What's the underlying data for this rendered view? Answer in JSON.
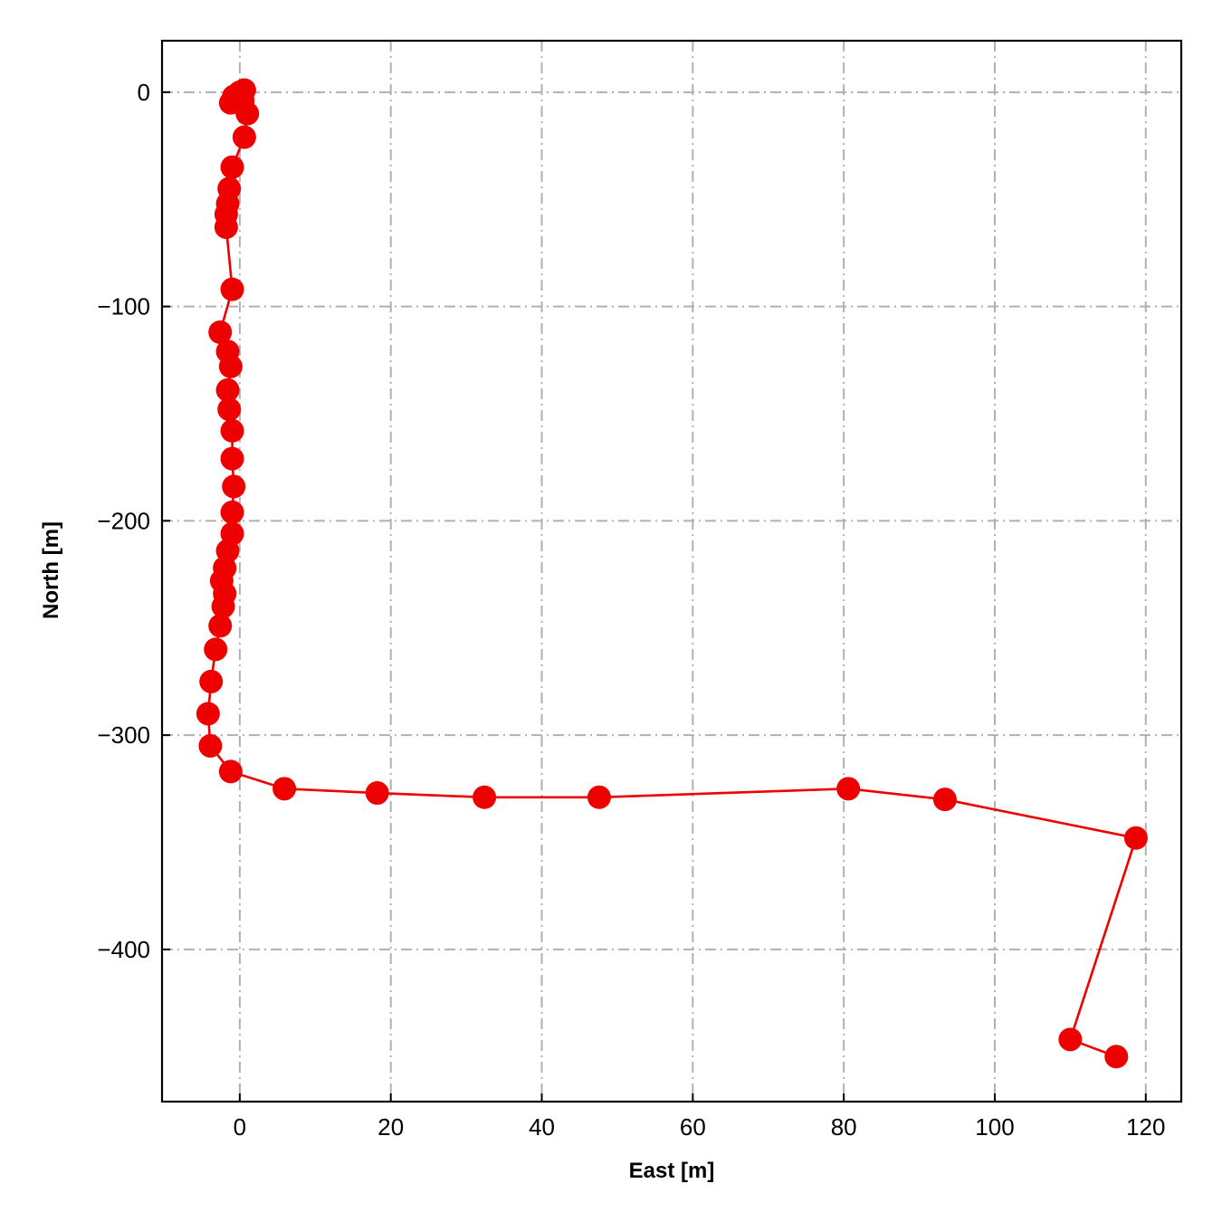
{
  "chart_data": {
    "type": "line",
    "title": "",
    "xlabel": "East [m]",
    "ylabel": "North [m]",
    "xlim": [
      -10.3,
      124.7
    ],
    "ylim": [
      -471,
      24
    ],
    "xticks": [
      0,
      20,
      40,
      60,
      80,
      100,
      120
    ],
    "yticks": [
      0,
      -100,
      -200,
      -300,
      -400
    ],
    "grid": true,
    "legend": "none",
    "line_color": "#ee0000",
    "marker_color": "#ee0000",
    "grid_color": "#b0b0b0",
    "series": [
      {
        "x": [
          0.6,
          0.0,
          -0.8,
          -1.2,
          -0.4,
          0.4,
          1.0,
          0.6,
          -1.0,
          -1.4,
          -1.6,
          -1.8,
          -1.8,
          -1.0,
          -2.6,
          -1.6,
          -1.2,
          -1.6,
          -1.4,
          -1.0,
          -1.0,
          -0.8,
          -1.0,
          -1.0,
          -1.6,
          -2.0,
          -2.4,
          -2.0,
          -2.2,
          -2.0,
          -2.6,
          -3.2,
          -3.8,
          -4.2,
          -3.9,
          -1.2,
          5.9,
          18.2,
          32.4,
          47.6,
          80.6,
          93.4,
          118.7,
          110.0,
          116.1
        ],
        "y": [
          1,
          0,
          -2,
          -5,
          -3,
          -4,
          -10,
          -21,
          -35,
          -45,
          -52,
          -57,
          -63,
          -92,
          -112,
          -121,
          -128,
          -139,
          -148,
          -158,
          -171,
          -184,
          -196,
          -206,
          -214,
          -222,
          -228,
          -234,
          -240,
          -222,
          -249,
          -260,
          -275,
          -290,
          -305,
          -317,
          -325,
          -327,
          -329,
          -329,
          -325,
          -330,
          -348,
          -442,
          -450
        ]
      }
    ]
  }
}
